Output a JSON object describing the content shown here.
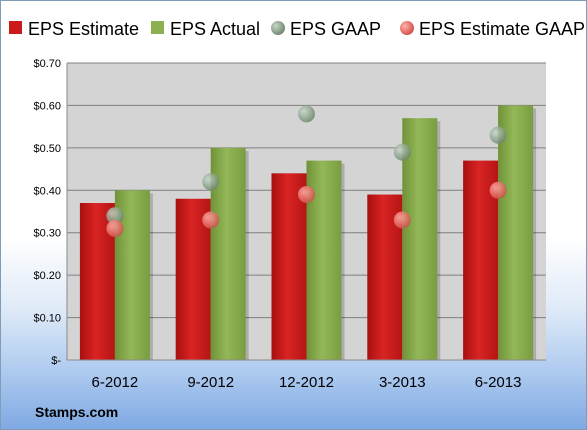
{
  "chart_data": {
    "type": "bar",
    "categories": [
      "6-2012",
      "9-2012",
      "12-2012",
      "3-2013",
      "6-2013"
    ],
    "series": [
      {
        "name": "EPS Estimate",
        "kind": "bar",
        "color": "#cc1a1a",
        "values": [
          0.37,
          0.38,
          0.44,
          0.39,
          0.47
        ]
      },
      {
        "name": "EPS Actual",
        "kind": "bar",
        "color": "#8cb050",
        "values": [
          0.4,
          0.5,
          0.47,
          0.57,
          0.6
        ]
      },
      {
        "name": "EPS GAAP",
        "kind": "scatter",
        "color": "#8fa68f",
        "values": [
          0.34,
          0.42,
          0.58,
          0.49,
          0.53
        ]
      },
      {
        "name": "EPS Estimate GAAP",
        "kind": "scatter",
        "color": "#e8736c",
        "values": [
          0.31,
          0.33,
          0.39,
          0.33,
          0.4
        ]
      }
    ],
    "y_ticks": [
      "$-",
      "$0.10",
      "$0.20",
      "$0.30",
      "$0.40",
      "$0.50",
      "$0.60",
      "$0.70"
    ],
    "ylim": [
      0,
      0.7
    ],
    "grid": true,
    "legend": "top"
  },
  "footer": {
    "brand": "Stamps.com"
  },
  "colors": {
    "plot_background": "#d4d4d4",
    "gridline": "#7f7f7f"
  }
}
